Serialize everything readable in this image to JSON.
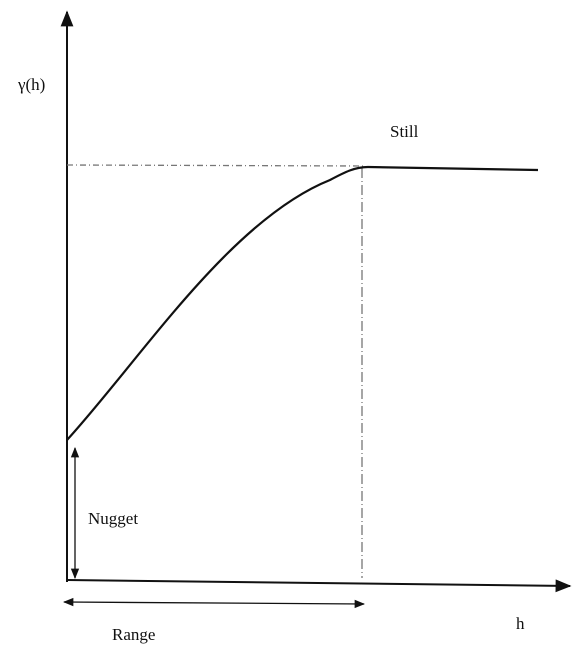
{
  "axis_labels": {
    "y": "γ(h)",
    "x": "h"
  },
  "annotations": {
    "sill": "Still",
    "nugget": "Nugget",
    "range": "Range"
  }
}
